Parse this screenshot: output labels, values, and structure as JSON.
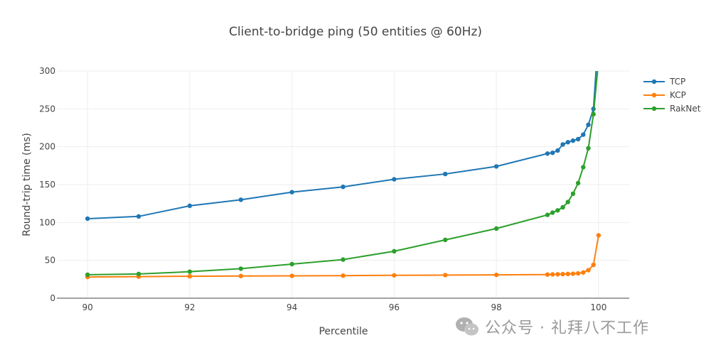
{
  "chart_data": {
    "type": "line",
    "title": "Client-to-bridge ping (50 entities @ 60Hz)",
    "xlabel": "Percentile",
    "ylabel": "Round-trip time (ms)",
    "xlim": [
      89.4,
      100.6
    ],
    "ylim": [
      0,
      300
    ],
    "xticks": [
      90,
      92,
      94,
      96,
      98,
      100
    ],
    "yticks": [
      0,
      50,
      100,
      150,
      200,
      250,
      300
    ],
    "grid": true,
    "legend_position": "top-right",
    "series": [
      {
        "name": "TCP",
        "color": "#1f77b4",
        "x": [
          90,
          91,
          92,
          93,
          94,
          95,
          96,
          97,
          98,
          99,
          99.1,
          99.2,
          99.3,
          99.4,
          99.5,
          99.6,
          99.7,
          99.8,
          99.9
        ],
        "y": [
          105,
          108,
          122,
          130,
          140,
          147,
          157,
          164,
          174,
          191,
          192,
          195,
          203,
          206,
          208,
          210,
          216,
          229,
          250
        ],
        "tail": [
          [
            99.95,
            300
          ]
        ]
      },
      {
        "name": "KCP",
        "color": "#ff7f0e",
        "x": [
          90,
          91,
          92,
          93,
          94,
          95,
          96,
          97,
          98,
          99,
          99.1,
          99.2,
          99.3,
          99.4,
          99.5,
          99.6,
          99.7,
          99.8,
          99.9,
          100
        ],
        "y": [
          28,
          28.5,
          29,
          29.3,
          29.5,
          29.8,
          30.2,
          30.5,
          30.8,
          31.2,
          31.4,
          31.6,
          31.8,
          32,
          32.3,
          32.8,
          34,
          37,
          44,
          83
        ]
      },
      {
        "name": "RakNet",
        "color": "#2ca02c",
        "x": [
          90,
          91,
          92,
          93,
          94,
          95,
          96,
          97,
          98,
          99,
          99.1,
          99.2,
          99.3,
          99.4,
          99.5,
          99.6,
          99.7,
          99.8,
          99.9
        ],
        "y": [
          31,
          32,
          35,
          39,
          45,
          51,
          62,
          77,
          92,
          110,
          113,
          116,
          120,
          127,
          138,
          152,
          173,
          198,
          243
        ],
        "tail": [
          [
            99.98,
            300
          ]
        ]
      }
    ]
  },
  "watermark": {
    "icon": "wechat-icon",
    "text": "公众号 · 礼拜八不工作"
  }
}
